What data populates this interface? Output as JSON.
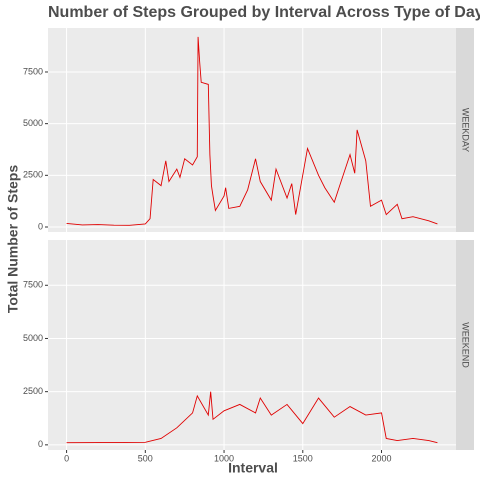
{
  "chart_data": {
    "type": "line",
    "title": "Number of Steps Grouped by Interval Across Type of Day",
    "x_label": "Interval",
    "y_label": "Total Number of Steps",
    "xlim": [
      -118,
      2473
    ],
    "xticks": [
      0,
      500,
      1000,
      1500,
      2000
    ],
    "ylim": [
      -242,
      9628
    ],
    "yticks": [
      0,
      2500,
      5000,
      7500
    ],
    "grid": true,
    "series": [
      {
        "name": "WEEKDAY",
        "color": "#e00000",
        "x": [
          0,
          100,
          200,
          300,
          400,
          500,
          530,
          550,
          600,
          630,
          650,
          700,
          720,
          750,
          800,
          830,
          835,
          845,
          855,
          900,
          910,
          920,
          930,
          945,
          1000,
          1010,
          1030,
          1100,
          1150,
          1200,
          1230,
          1300,
          1330,
          1400,
          1430,
          1455,
          1530,
          1600,
          1640,
          1700,
          1730,
          1800,
          1830,
          1845,
          1900,
          1930,
          2000,
          2030,
          2100,
          2130,
          2200,
          2300,
          2355
        ],
        "values": [
          170,
          100,
          120,
          90,
          80,
          150,
          400,
          2300,
          2000,
          3200,
          2200,
          2800,
          2400,
          3300,
          3000,
          3400,
          9200,
          8000,
          7000,
          6900,
          3500,
          2000,
          1500,
          800,
          1500,
          1900,
          900,
          1000,
          1800,
          3300,
          2200,
          1300,
          2800,
          1400,
          2100,
          600,
          3800,
          2500,
          1900,
          1200,
          1900,
          3500,
          2600,
          4700,
          3200,
          1000,
          1300,
          600,
          1100,
          400,
          500,
          300,
          150
        ]
      },
      {
        "name": "WEEKEND",
        "color": "#e00000",
        "x": [
          0,
          500,
          600,
          700,
          800,
          830,
          900,
          915,
          930,
          1000,
          1100,
          1200,
          1230,
          1300,
          1400,
          1500,
          1600,
          1700,
          1800,
          1900,
          2000,
          2030,
          2100,
          2200,
          2300,
          2355
        ],
        "values": [
          100,
          120,
          300,
          800,
          1500,
          2300,
          1400,
          2500,
          1200,
          1600,
          1900,
          1500,
          2200,
          1400,
          1900,
          1000,
          2200,
          1300,
          1800,
          1400,
          1500,
          300,
          200,
          300,
          200,
          100
        ]
      }
    ]
  }
}
